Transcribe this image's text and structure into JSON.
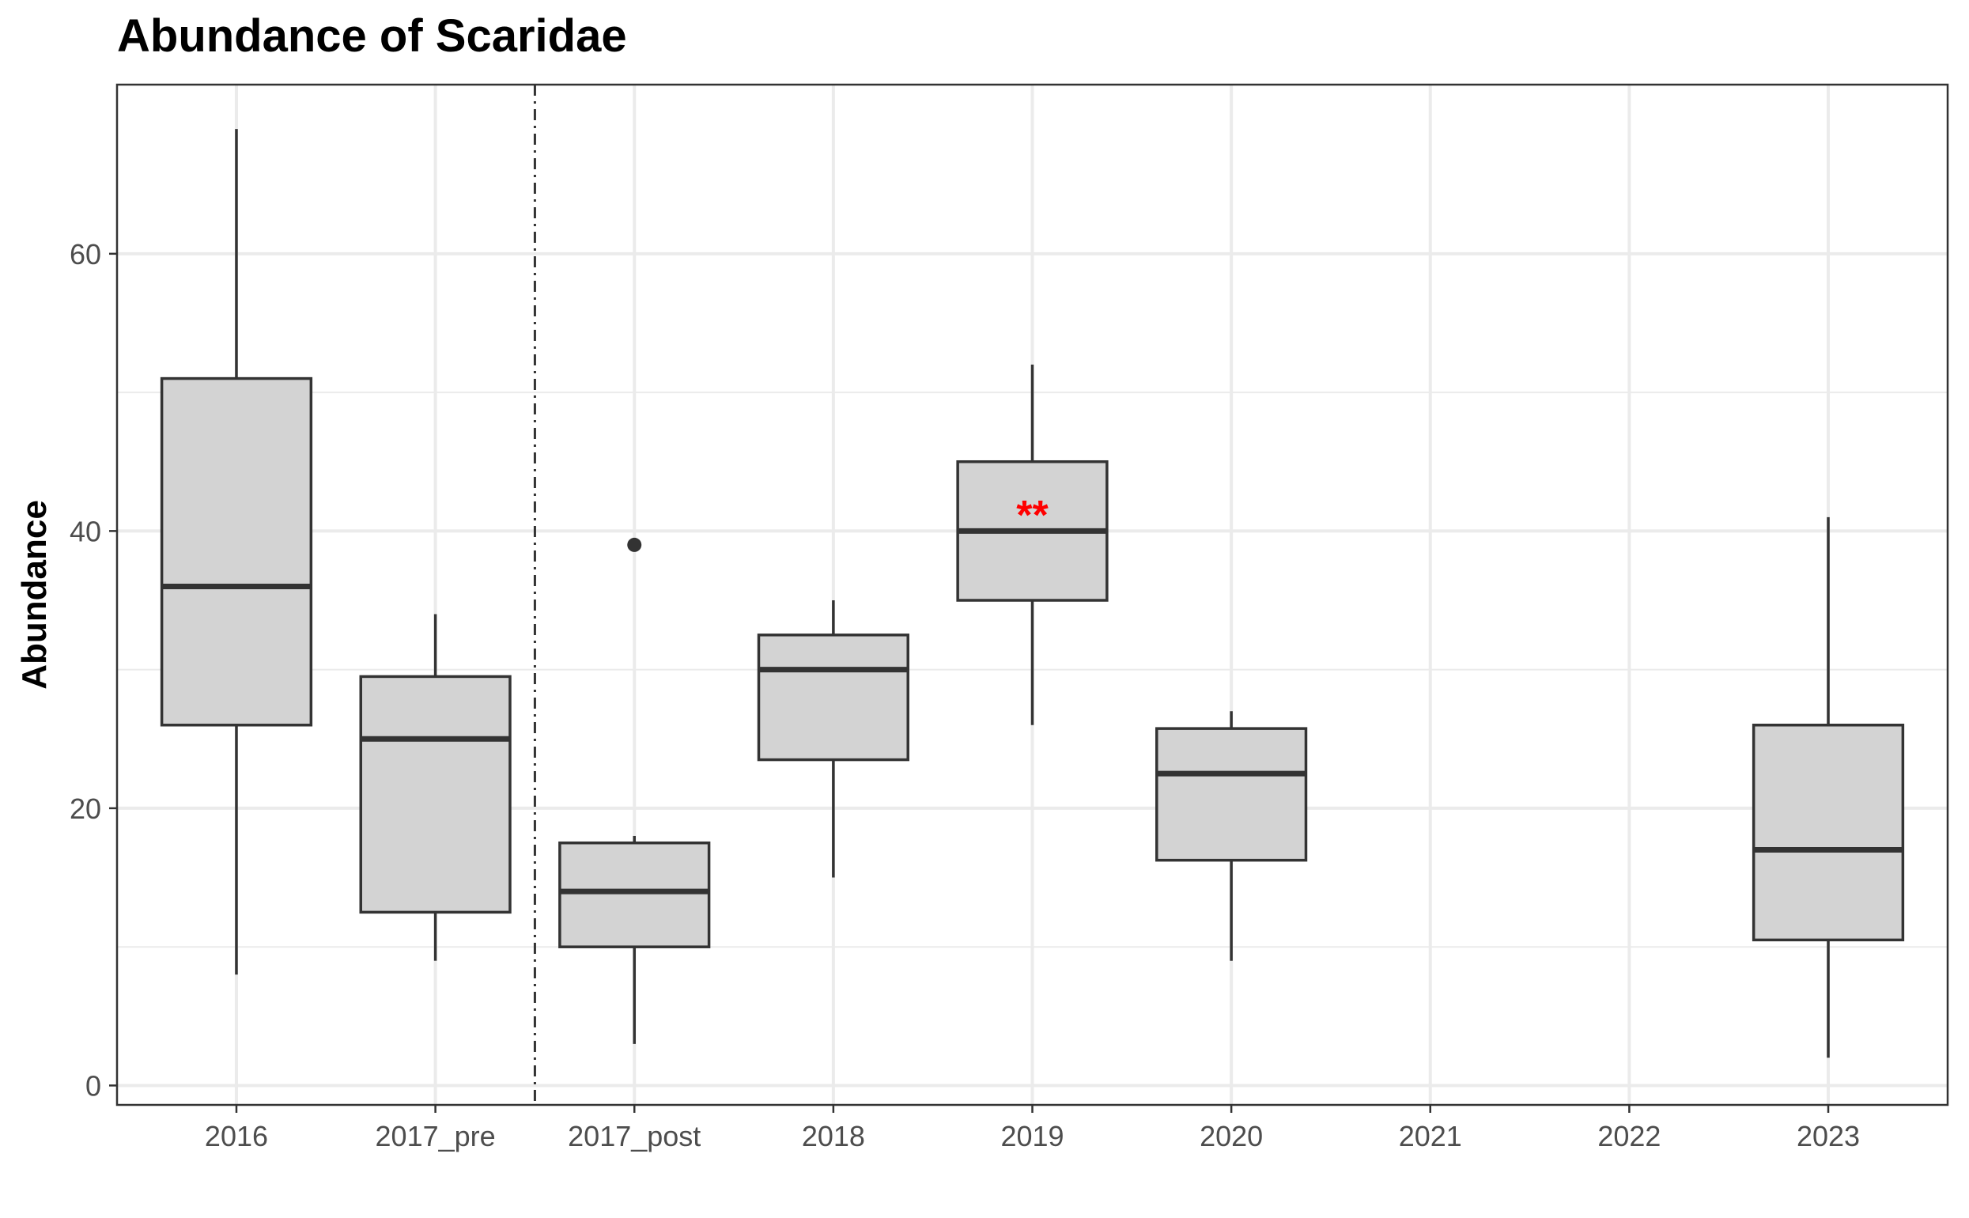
{
  "chart_data": {
    "type": "box",
    "title": "Abundance of Scaridae",
    "xlabel": "",
    "ylabel": "Abundance",
    "ylim": [
      -1.4,
      72.2
    ],
    "yticks": [
      0,
      20,
      40,
      60
    ],
    "grid": true,
    "categories": [
      "2016",
      "2017_pre",
      "2017_post",
      "2018",
      "2019",
      "2020",
      "2021",
      "2022",
      "2023"
    ],
    "boxes": [
      {
        "category": "2016",
        "min": 8,
        "q1": 26,
        "median": 36,
        "q3": 51,
        "max": 69,
        "outliers": []
      },
      {
        "category": "2017_pre",
        "min": 9,
        "q1": 12.5,
        "median": 25,
        "q3": 29.5,
        "max": 34,
        "outliers": []
      },
      {
        "category": "2017_post",
        "min": 3,
        "q1": 10,
        "median": 14,
        "q3": 17.5,
        "max": 18,
        "outliers": [
          39
        ]
      },
      {
        "category": "2018",
        "min": 15,
        "q1": 23.5,
        "median": 30,
        "q3": 32.5,
        "max": 35,
        "outliers": []
      },
      {
        "category": "2019",
        "min": 26,
        "q1": 35,
        "median": 40,
        "q3": 45,
        "max": 52,
        "outliers": []
      },
      {
        "category": "2020",
        "min": 9,
        "q1": 16.25,
        "median": 22.5,
        "q3": 25.75,
        "max": 27,
        "outliers": []
      },
      {
        "category": "2023",
        "min": 2,
        "q1": 10.5,
        "median": 17,
        "q3": 26,
        "max": 41,
        "outliers": []
      }
    ],
    "annotations": [
      {
        "category": "2019",
        "y": 41.5,
        "text": "**",
        "color": "#ff0000"
      }
    ],
    "reference_line": {
      "between": [
        "2017_pre",
        "2017_post"
      ],
      "style": "dashdot"
    },
    "box_fill": "#d3d3d3",
    "box_stroke": "#333333",
    "grid_color": "#ebebeb"
  }
}
